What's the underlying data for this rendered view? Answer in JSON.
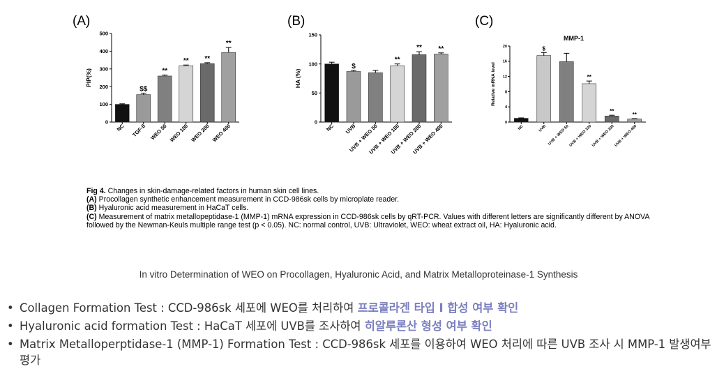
{
  "chart_data": [
    {
      "type": "bar",
      "panel": "(A)",
      "ylabel": "PIP(%)",
      "ylim": [
        0,
        500
      ],
      "yticks": [
        0,
        100,
        200,
        300,
        400,
        500
      ],
      "categories": [
        "NC",
        "TGF-ß",
        "WEO 50",
        "WEO 100",
        "WEO 200",
        "WEO 400"
      ],
      "values": [
        100,
        155,
        260,
        318,
        330,
        393
      ],
      "errors": [
        3,
        8,
        5,
        4,
        5,
        28
      ],
      "annotations": [
        "",
        "$$",
        "**",
        "**",
        "**",
        "**"
      ],
      "colors": [
        "#111111",
        "#9a9a9a",
        "#808080",
        "#d5d5d5",
        "#6a6a6a",
        "#a0a0a0"
      ]
    },
    {
      "type": "bar",
      "panel": "(B)",
      "ylabel": "HA (%)",
      "ylim": [
        0,
        150
      ],
      "yticks": [
        0,
        50,
        100,
        150
      ],
      "categories": [
        "NC",
        "UVB",
        "UVB + WEO 50",
        "UVB + WEO 100",
        "UVB + WEO 200",
        "UVB + WEO 400"
      ],
      "values": [
        100,
        87,
        85,
        97,
        116,
        117
      ],
      "errors": [
        3,
        2,
        4,
        3,
        5,
        2
      ],
      "annotations": [
        "",
        "$",
        "",
        "**",
        "**",
        "**"
      ],
      "colors": [
        "#111111",
        "#9a9a9a",
        "#808080",
        "#d5d5d5",
        "#6a6a6a",
        "#a0a0a0"
      ]
    },
    {
      "type": "bar",
      "panel": "(C)",
      "title": "MMP-1",
      "ylabel": "Relative mRNA level",
      "ylim": [
        0,
        20
      ],
      "yticks": [
        0,
        4,
        8,
        12,
        16,
        20
      ],
      "categories": [
        "NC",
        "UVB",
        "UVB + WEO 50",
        "UVB + WEO 100",
        "UVB + WEO 200",
        "UVB + WEO 400"
      ],
      "values": [
        1,
        17.5,
        15.9,
        10.1,
        1.6,
        0.8
      ],
      "errors": [
        0.1,
        0.8,
        2.2,
        0.7,
        0.2,
        0.1
      ],
      "annotations": [
        "",
        "$",
        "",
        "**",
        "**",
        "**"
      ],
      "colors": [
        "#111111",
        "#c8c8c8",
        "#808080",
        "#d5d5d5",
        "#6a6a6a",
        "#a0a0a0"
      ]
    }
  ],
  "caption": {
    "fig_label": "Fig 4.",
    "fig_text": " Changes in skin-damage-related factors in human skin cell lines.",
    "a_label": "(A)",
    "a_text": " Procollagen synthetic enhancement measurement in CCD-986sk cells by microplate reader.",
    "b_label": "(B)",
    "b_text": " Hyaluronic acid measurement in HaCaT cells.",
    "c_label": "(C)",
    "c_text": " Measurement of matrix metallopeptidase-1 (MMP-1) mRNA expression in CCD-986sk cells by qRT-PCR. Values with different letters are significantly different by ANOVA followed by the Newman-Keuls multiple range test (p < 0.05). NC: normal control, UVB: Ultraviolet, WEO: wheat extract oil, HA: Hyaluronic acid."
  },
  "subtitle": "In vitro Determination of WEO on Procollagen, Hyaluronic Acid, and Matrix Metalloproteinase-1 Synthesis",
  "bullets": [
    {
      "dot": "•",
      "text": "Collagen Formation Test : CCD-986sk 세포에 WEO를 처리하여 ",
      "highlight": "프로콜라겐 타입 I 합성 여부 확인"
    },
    {
      "dot": "•",
      "text": "Hyaluronic acid formation Test : HaCaT 세포에 UVB를 조사하여 ",
      "highlight": "히알루론산 형성 여부 확인"
    },
    {
      "dot": "•",
      "text": "Matrix Metalloperptidase-1 (MMP-1) Formation Test : CCD-986sk 세포를 이용하여 WEO 처리에 따른  UVB 조사 시 MMP-1 발생여부 평가",
      "highlight": ""
    }
  ]
}
